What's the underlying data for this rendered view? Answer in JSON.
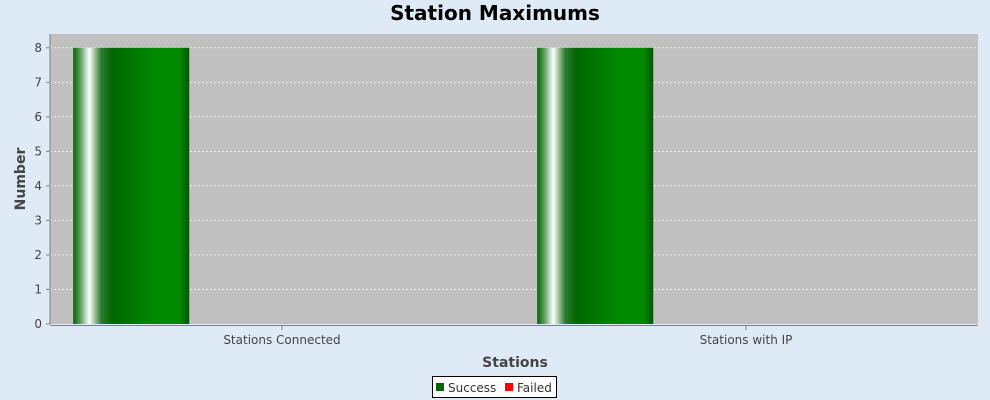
{
  "chart_data": {
    "type": "bar",
    "title": "Station Maximums",
    "xlabel": "Stations",
    "ylabel": "Number",
    "categories": [
      "Stations Connected",
      "Stations with IP"
    ],
    "series": [
      {
        "name": "Success",
        "values": [
          8,
          8
        ],
        "color": "#006600"
      },
      {
        "name": "Failed",
        "values": [
          0,
          0
        ],
        "color": "#ff0000"
      }
    ],
    "ylim": [
      0,
      8.4
    ],
    "yticks": [
      0,
      1,
      2,
      3,
      4,
      5,
      6,
      7,
      8
    ],
    "grid": true,
    "legend": "bottom-center"
  },
  "colors": {
    "background": "#dfeaf7",
    "plot_background": "#c0c0c0",
    "grid": "#ffffff",
    "bar_dark": "#006600",
    "bar_light": "#008a00"
  }
}
